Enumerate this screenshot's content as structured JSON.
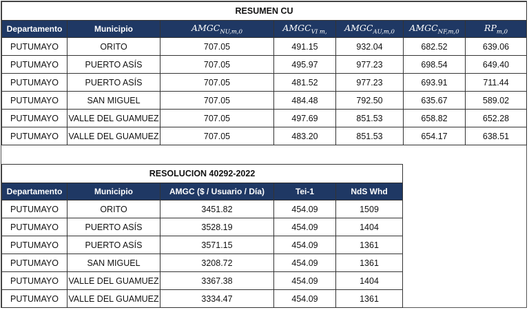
{
  "table1": {
    "title": "RESUMEN CU",
    "columns": [
      "Departamento",
      "Municipio",
      {
        "text": "AMGC",
        "sub": "NU,m,0"
      },
      {
        "text": "AMGC",
        "sub": "VI m,"
      },
      {
        "text": "AMGC",
        "sub": "AU,m,0"
      },
      {
        "text": "AMGC",
        "sub": "NF,m,0"
      },
      {
        "text": "RP",
        "sub": "m,0"
      }
    ],
    "rows": [
      [
        "PUTUMAYO",
        "ORITO",
        "707.05",
        "491.15",
        "932.04",
        "682.52",
        "639.06"
      ],
      [
        "PUTUMAYO",
        "PUERTO ASÍS",
        "707.05",
        "495.97",
        "977.23",
        "698.54",
        "649.40"
      ],
      [
        "PUTUMAYO",
        "PUERTO ASÍS",
        "707.05",
        "481.52",
        "977.23",
        "693.91",
        "711.44"
      ],
      [
        "PUTUMAYO",
        "SAN MIGUEL",
        "707.05",
        "484.48",
        "792.50",
        "635.67",
        "589.02"
      ],
      [
        "PUTUMAYO",
        "VALLE DEL GUAMUEZ",
        "707.05",
        "497.69",
        "851.53",
        "658.82",
        "652.28"
      ],
      [
        "PUTUMAYO",
        "VALLE DEL GUAMUEZ",
        "707.05",
        "483.20",
        "851.53",
        "654.17",
        "638.51"
      ]
    ]
  },
  "table2": {
    "title": "RESOLUCION 40292-2022",
    "columns": [
      "Departamento",
      "Municipio",
      "AMGC ($ / Usuario / Día)",
      "Tei-1",
      "NdS Whd"
    ],
    "rows": [
      [
        "PUTUMAYO",
        "ORITO",
        "3451.82",
        "454.09",
        "1509"
      ],
      [
        "PUTUMAYO",
        "PUERTO ASÍS",
        "3528.19",
        "454.09",
        "1404"
      ],
      [
        "PUTUMAYO",
        "PUERTO ASÍS",
        "3571.15",
        "454.09",
        "1361"
      ],
      [
        "PUTUMAYO",
        "SAN MIGUEL",
        "3208.72",
        "454.09",
        "1361"
      ],
      [
        "PUTUMAYO",
        "VALLE DEL GUAMUEZ",
        "3367.38",
        "454.09",
        "1404"
      ],
      [
        "PUTUMAYO",
        "VALLE DEL GUAMUEZ",
        "3334.47",
        "454.09",
        "1361"
      ]
    ]
  }
}
